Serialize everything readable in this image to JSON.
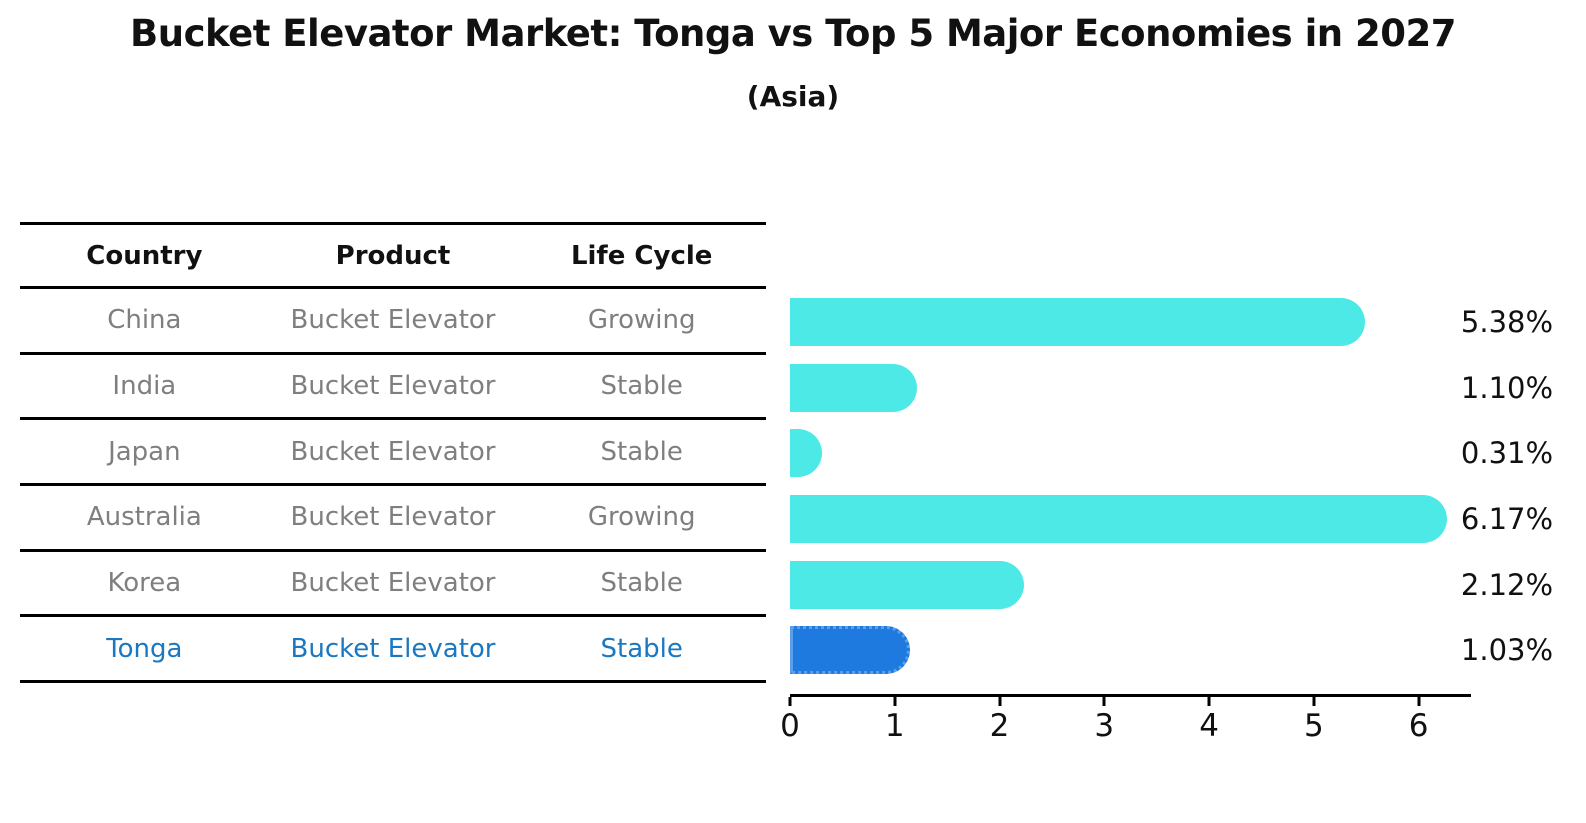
{
  "header": {
    "title": "Bucket Elevator Market: Tonga vs Top 5 Major Economies in 2027",
    "subtitle": "(Asia)"
  },
  "table": {
    "columns": [
      "Country",
      "Product",
      "Life Cycle"
    ],
    "rows": [
      {
        "country": "China",
        "product": "Bucket Elevator",
        "life_cycle": "Growing",
        "highlight": false
      },
      {
        "country": "India",
        "product": "Bucket Elevator",
        "life_cycle": "Stable",
        "highlight": false
      },
      {
        "country": "Japan",
        "product": "Bucket Elevator",
        "life_cycle": "Stable",
        "highlight": false
      },
      {
        "country": "Australia",
        "product": "Bucket Elevator",
        "life_cycle": "Growing",
        "highlight": false
      },
      {
        "country": "Korea",
        "product": "Bucket Elevator",
        "life_cycle": "Stable",
        "highlight": false
      },
      {
        "country": "Tonga",
        "product": "Bucket Elevator",
        "life_cycle": "Stable",
        "highlight": true
      }
    ]
  },
  "chart_data": {
    "type": "bar",
    "orientation": "horizontal",
    "title": "Bucket Elevator Market: Tonga vs Top 5 Major Economies in 2027",
    "subtitle": "(Asia)",
    "categories": [
      "China",
      "India",
      "Japan",
      "Australia",
      "Korea",
      "Tonga"
    ],
    "values": [
      5.38,
      1.1,
      0.31,
      6.17,
      2.12,
      1.03
    ],
    "value_labels": [
      "5.38%",
      "1.10%",
      "0.31%",
      "6.17%",
      "2.12%",
      "1.03%"
    ],
    "xticks": [
      0,
      1,
      2,
      3,
      4,
      5,
      6
    ],
    "xtick_labels": [
      "0",
      "1",
      "2",
      "3",
      "4",
      "5",
      "6"
    ],
    "xlim": [
      0,
      6.5
    ],
    "xlabel": "",
    "ylabel": "",
    "grid": false,
    "legend": false,
    "highlight_category": "Tonga"
  },
  "colors": {
    "bar": "#4DE9E6",
    "highlight_bar": "#1E7ADF",
    "highlight_bar_border": "#5B9FE8",
    "highlight_text": "#1A78C2",
    "table_text": "#7F7F7F",
    "axis": "#000000"
  }
}
